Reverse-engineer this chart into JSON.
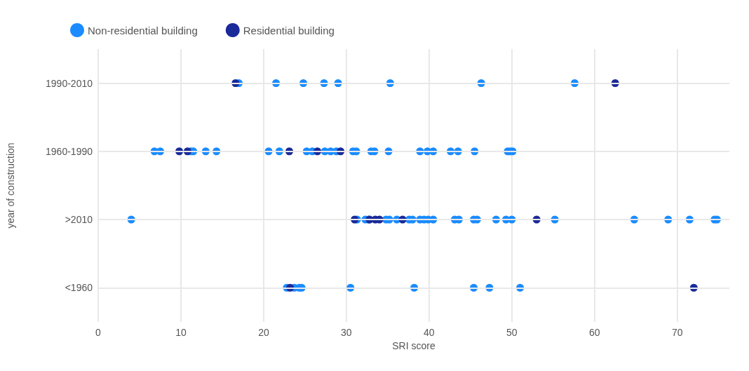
{
  "chart_data": {
    "type": "scatter",
    "orientation": "horizontal",
    "xlabel": "SRI score",
    "ylabel": "year of construction",
    "categories": [
      "1990-2010",
      "1960-1990",
      ">2010",
      "<1960"
    ],
    "xlim": [
      0,
      76.3
    ],
    "xticks": [
      0,
      10,
      20,
      30,
      40,
      50,
      60,
      70
    ],
    "grid": true,
    "legend": "top left",
    "marker": "circle",
    "series": [
      {
        "name": "Non-residential building",
        "color": "#1a8cff",
        "x": [
          "1990-2010",
          "1990-2010",
          "1990-2010",
          "1990-2010",
          "1990-2010",
          "1990-2010",
          "1990-2010",
          "1990-2010",
          "1960-1990",
          "1960-1990",
          "1960-1990",
          "1960-1990",
          "1960-1990",
          "1960-1990",
          "1960-1990",
          "1960-1990",
          "1960-1990",
          "1960-1990",
          "1960-1990",
          "1960-1990",
          "1960-1990",
          "1960-1990",
          "1960-1990",
          "1960-1990",
          "1960-1990",
          "1960-1990",
          "1960-1990",
          "1960-1990",
          "1960-1990",
          "1960-1990",
          "1960-1990",
          "1960-1990",
          "1960-1990",
          "1960-1990",
          "1960-1990",
          ">2010",
          ">2010",
          ">2010",
          ">2010",
          ">2010",
          ">2010",
          ">2010",
          ">2010",
          ">2010",
          ">2010",
          ">2010",
          ">2010",
          ">2010",
          ">2010",
          ">2010",
          ">2010",
          ">2010",
          ">2010",
          ">2010",
          ">2010",
          ">2010",
          ">2010",
          ">2010",
          ">2010",
          ">2010",
          ">2010",
          "<1960",
          "<1960",
          "<1960",
          "<1960",
          "<1960",
          "<1960",
          "<1960",
          "<1960",
          "<1960"
        ],
        "values": [
          17.0,
          21.5,
          24.8,
          27.3,
          29.0,
          35.3,
          46.3,
          57.6,
          6.8,
          7.5,
          11.2,
          11.5,
          13.0,
          14.3,
          20.6,
          21.9,
          25.2,
          25.9,
          27.4,
          28.1,
          28.8,
          30.8,
          31.2,
          33.0,
          33.4,
          35.1,
          38.9,
          39.8,
          40.5,
          42.6,
          43.5,
          45.5,
          49.5,
          49.8,
          50.1,
          4.0,
          31.3,
          32.3,
          32.7,
          34.8,
          35.2,
          36.1,
          37.6,
          38.0,
          38.9,
          39.4,
          39.9,
          40.5,
          43.1,
          43.6,
          45.4,
          45.8,
          48.1,
          49.3,
          50.0,
          55.2,
          64.8,
          68.9,
          71.5,
          74.5,
          74.8,
          22.8,
          23.7,
          24.3,
          24.6,
          30.5,
          38.2,
          45.4,
          47.3,
          51.0
        ]
      },
      {
        "name": "Residential building",
        "color": "#1a2a99",
        "x": [
          "1990-2010",
          "1990-2010",
          "1960-1990",
          "1960-1990",
          "1960-1990",
          "1960-1990",
          "1960-1990",
          ">2010",
          ">2010",
          ">2010",
          ">2010",
          ">2010",
          ">2010",
          "<1960",
          "<1960"
        ],
        "values": [
          16.6,
          62.5,
          9.8,
          10.8,
          23.1,
          26.5,
          29.3,
          31.0,
          32.8,
          33.5,
          34.0,
          36.8,
          53.0,
          23.2,
          72.0
        ]
      }
    ]
  }
}
